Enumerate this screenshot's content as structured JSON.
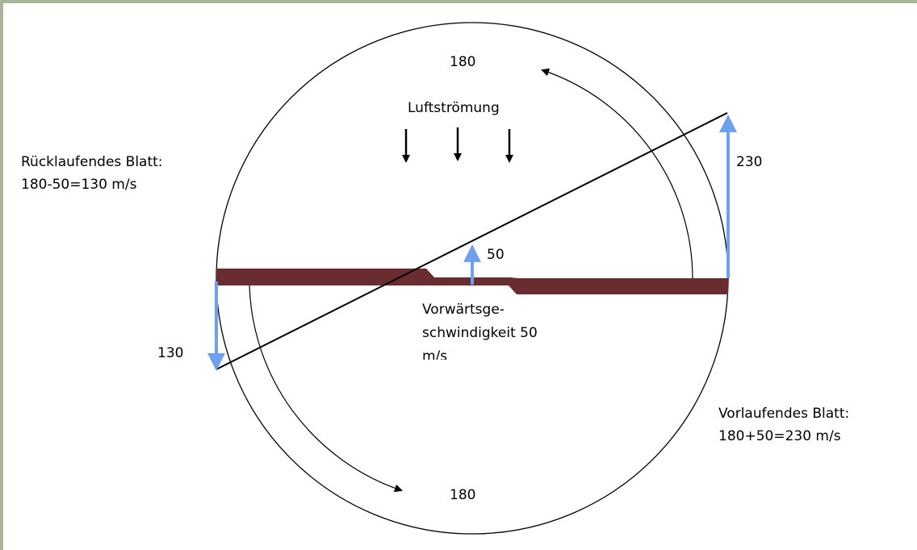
{
  "labels": {
    "top_speed": "180",
    "airflow": "Luftströmung",
    "retreating_title": "Rücklaufendes Blatt:",
    "retreating_calc": "180-50=130 m/s",
    "advancing_arrow": "230",
    "forward_arrow": "50",
    "forward_text": [
      "Vorwärtsge-",
      "schwindigkeit 50",
      "m/s"
    ],
    "retreating_arrow": "130",
    "advancing_title": "Vorlaufendes Blatt:",
    "advancing_calc": "180+50=230 m/s",
    "bottom_speed": "180"
  }
}
